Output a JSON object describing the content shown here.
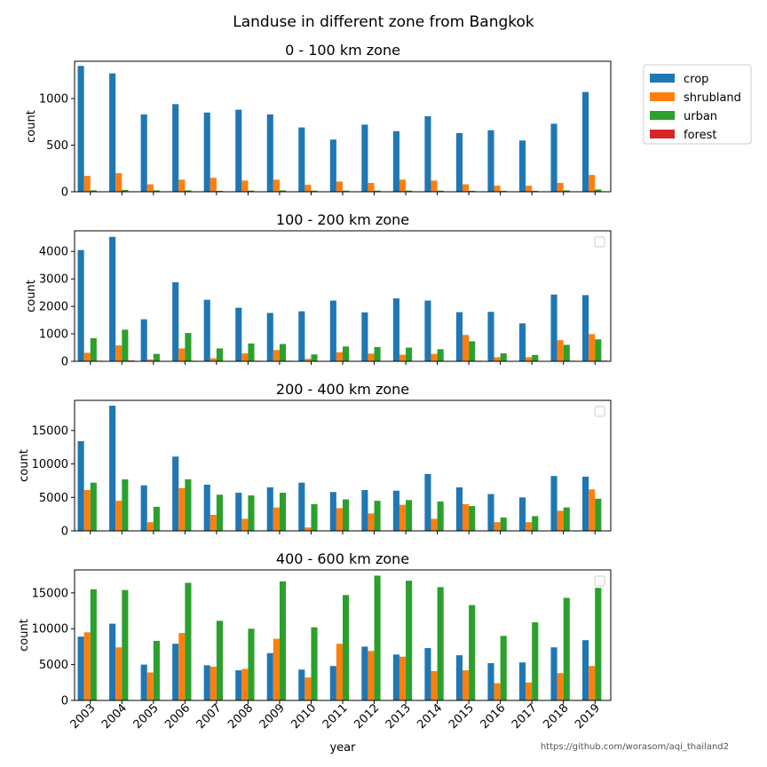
{
  "figure_title": "Landuse in different zone from Bangkok",
  "credit": "https://github.com/worasom/aqi_thailand2",
  "legend": {
    "placement": "outside-top-right",
    "entries": [
      {
        "name": "crop",
        "color": "#1f77b4"
      },
      {
        "name": "shrubland",
        "color": "#ff7f0e"
      },
      {
        "name": "urban",
        "color": "#2ca02c"
      },
      {
        "name": "forest",
        "color": "#d62728"
      }
    ]
  },
  "chart_data": [
    {
      "type": "bar",
      "title": "0 - 100 km zone",
      "xlabel": "year",
      "ylabel": "count",
      "ylim": [
        0,
        1400
      ],
      "yticks": [
        0,
        500,
        1000
      ],
      "grid": false,
      "categories": [
        "2003",
        "2004",
        "2005",
        "2006",
        "2007",
        "2008",
        "2009",
        "2010",
        "2011",
        "2012",
        "2013",
        "2014",
        "2015",
        "2016",
        "2017",
        "2018",
        "2019"
      ],
      "series": [
        {
          "name": "crop",
          "color": "#1f77b4",
          "values": [
            1350,
            1270,
            830,
            940,
            850,
            880,
            830,
            690,
            560,
            720,
            650,
            810,
            630,
            660,
            550,
            730,
            1070
          ]
        },
        {
          "name": "shrubland",
          "color": "#ff7f0e",
          "values": [
            170,
            200,
            80,
            130,
            150,
            120,
            130,
            75,
            110,
            95,
            130,
            120,
            80,
            65,
            65,
            95,
            180
          ]
        },
        {
          "name": "urban",
          "color": "#2ca02c",
          "values": [
            15,
            20,
            15,
            15,
            10,
            12,
            15,
            12,
            12,
            12,
            12,
            12,
            10,
            10,
            10,
            15,
            25
          ]
        },
        {
          "name": "forest",
          "color": "#d62728",
          "values": [
            3,
            5,
            2,
            3,
            2,
            3,
            3,
            2,
            2,
            2,
            2,
            3,
            2,
            2,
            2,
            3,
            5
          ]
        }
      ]
    },
    {
      "type": "bar",
      "title": "100 - 200 km zone",
      "xlabel": "year",
      "ylabel": "count",
      "ylim": [
        0,
        4750
      ],
      "yticks": [
        0,
        1000,
        2000,
        3000,
        4000
      ],
      "grid": false,
      "categories": [
        "2003",
        "2004",
        "2005",
        "2006",
        "2007",
        "2008",
        "2009",
        "2010",
        "2011",
        "2012",
        "2013",
        "2014",
        "2015",
        "2016",
        "2017",
        "2018",
        "2019"
      ],
      "series": [
        {
          "name": "crop",
          "color": "#1f77b4",
          "values": [
            4050,
            4530,
            1530,
            2880,
            2240,
            1950,
            1760,
            1820,
            2210,
            1780,
            2290,
            2210,
            1790,
            1800,
            1380,
            2430,
            2410
          ]
        },
        {
          "name": "shrubland",
          "color": "#ff7f0e",
          "values": [
            310,
            580,
            70,
            470,
            110,
            290,
            410,
            90,
            330,
            280,
            240,
            270,
            960,
            150,
            150,
            770,
            990
          ]
        },
        {
          "name": "urban",
          "color": "#2ca02c",
          "values": [
            840,
            1150,
            270,
            1030,
            470,
            650,
            630,
            250,
            540,
            520,
            500,
            440,
            730,
            290,
            230,
            600,
            800
          ]
        },
        {
          "name": "forest",
          "color": "#d62728",
          "values": [
            20,
            30,
            10,
            20,
            10,
            20,
            20,
            10,
            15,
            15,
            15,
            15,
            20,
            10,
            10,
            20,
            25
          ]
        }
      ]
    },
    {
      "type": "bar",
      "title": "200 - 400 km zone",
      "xlabel": "year",
      "ylabel": "count",
      "ylim": [
        0,
        19500
      ],
      "yticks": [
        0,
        5000,
        10000,
        15000
      ],
      "grid": false,
      "categories": [
        "2003",
        "2004",
        "2005",
        "2006",
        "2007",
        "2008",
        "2009",
        "2010",
        "2011",
        "2012",
        "2013",
        "2014",
        "2015",
        "2016",
        "2017",
        "2018",
        "2019"
      ],
      "series": [
        {
          "name": "crop",
          "color": "#1f77b4",
          "values": [
            13400,
            18700,
            6800,
            11100,
            6900,
            5700,
            6500,
            7200,
            5800,
            6100,
            6000,
            8500,
            6500,
            5500,
            5000,
            8200,
            8100
          ]
        },
        {
          "name": "shrubland",
          "color": "#ff7f0e",
          "values": [
            6100,
            4500,
            1300,
            6400,
            2400,
            1800,
            3500,
            500,
            3400,
            2600,
            3900,
            1800,
            4000,
            1300,
            1300,
            3000,
            6200
          ]
        },
        {
          "name": "urban",
          "color": "#2ca02c",
          "values": [
            7200,
            7700,
            3600,
            7700,
            5400,
            5300,
            5700,
            4000,
            4700,
            4500,
            4600,
            4400,
            3700,
            2000,
            2200,
            3500,
            4800
          ]
        },
        {
          "name": "forest",
          "color": "#d62728",
          "values": [
            50,
            60,
            30,
            50,
            30,
            30,
            40,
            20,
            30,
            30,
            30,
            30,
            30,
            20,
            20,
            30,
            40
          ]
        }
      ]
    },
    {
      "type": "bar",
      "title": "400 - 600 km zone",
      "xlabel": "year",
      "ylabel": "count",
      "ylim": [
        0,
        18200
      ],
      "yticks": [
        0,
        5000,
        10000,
        15000
      ],
      "grid": false,
      "categories": [
        "2003",
        "2004",
        "2005",
        "2006",
        "2007",
        "2008",
        "2009",
        "2010",
        "2011",
        "2012",
        "2013",
        "2014",
        "2015",
        "2016",
        "2017",
        "2018",
        "2019"
      ],
      "series": [
        {
          "name": "crop",
          "color": "#1f77b4",
          "values": [
            8900,
            10700,
            5000,
            7900,
            4900,
            4200,
            6600,
            4300,
            4800,
            7500,
            6400,
            7300,
            6300,
            5200,
            5300,
            7400,
            8400
          ]
        },
        {
          "name": "shrubland",
          "color": "#ff7f0e",
          "values": [
            9500,
            7400,
            3900,
            9400,
            4700,
            4400,
            8600,
            3200,
            7900,
            6900,
            6100,
            4100,
            4200,
            2400,
            2500,
            3800,
            4800
          ]
        },
        {
          "name": "urban",
          "color": "#2ca02c",
          "values": [
            15500,
            15400,
            8300,
            16400,
            11100,
            10000,
            16600,
            10200,
            14700,
            17400,
            16700,
            15800,
            13300,
            9000,
            10900,
            14300,
            15700
          ]
        },
        {
          "name": "forest",
          "color": "#d62728",
          "values": [
            40,
            40,
            20,
            40,
            30,
            20,
            40,
            20,
            30,
            40,
            40,
            30,
            30,
            20,
            20,
            30,
            40
          ]
        }
      ]
    }
  ]
}
